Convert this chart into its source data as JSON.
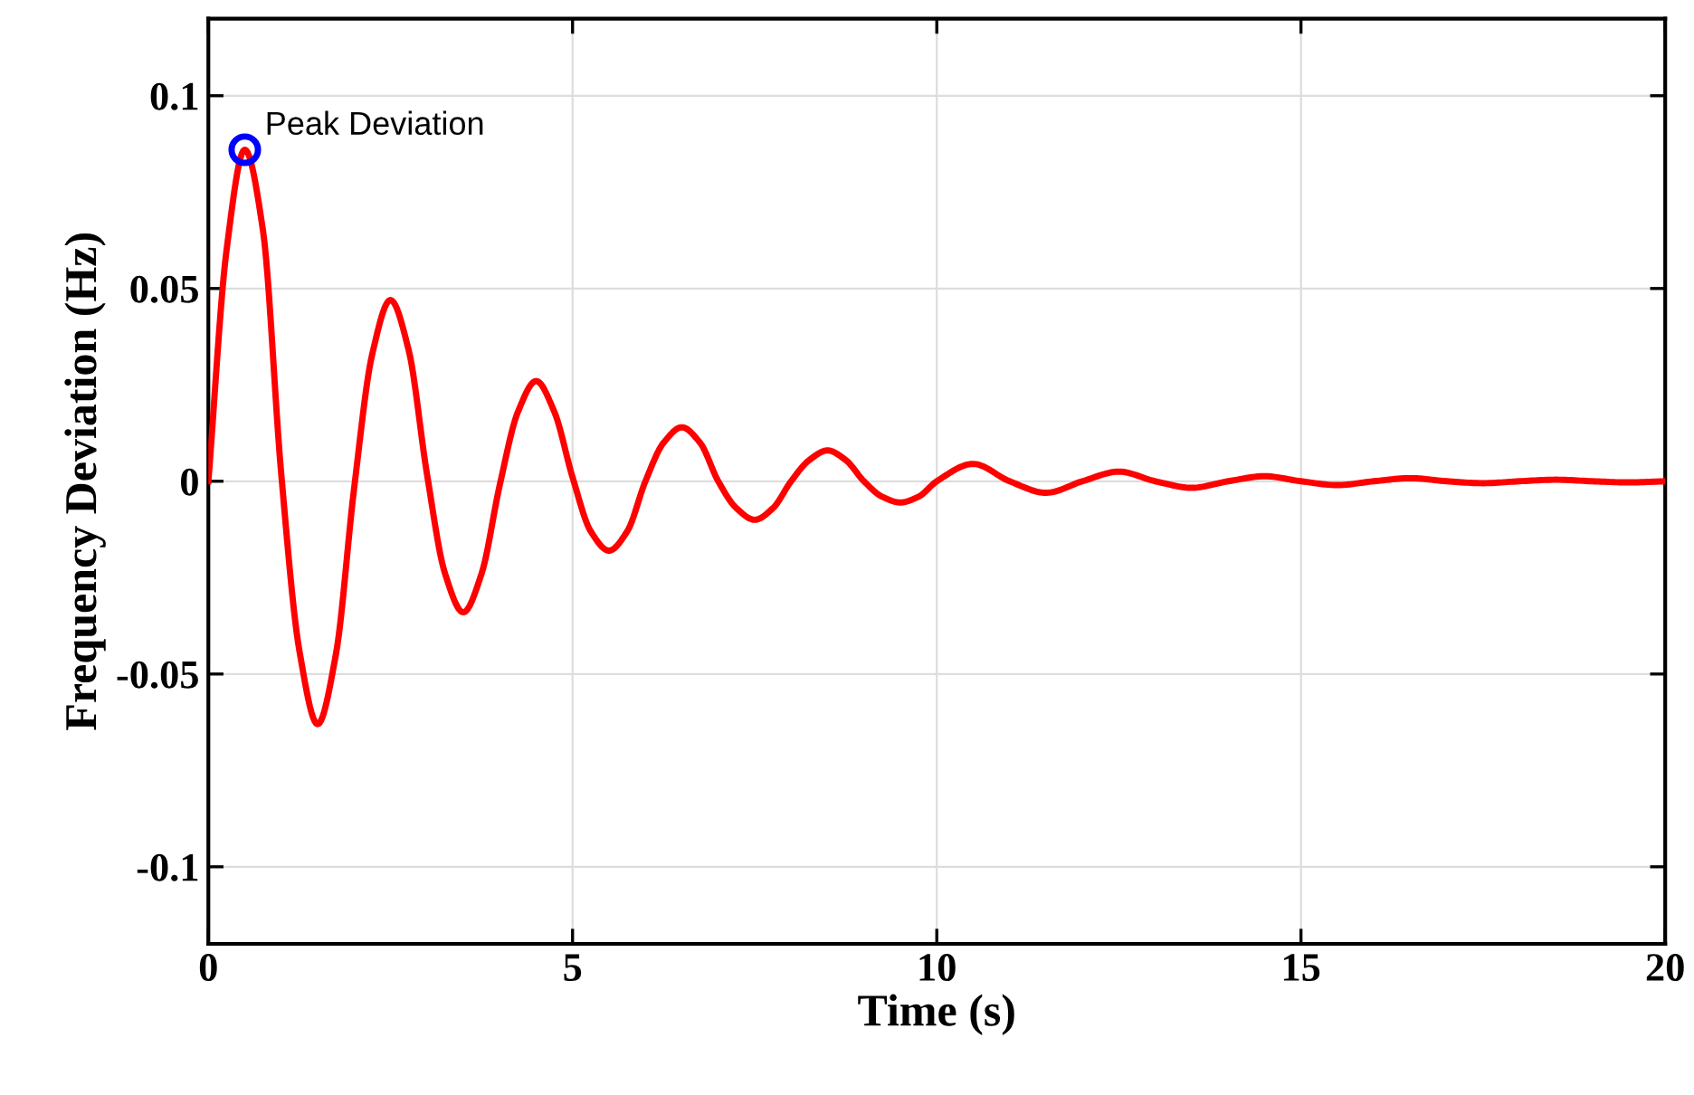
{
  "chart_data": {
    "type": "line",
    "xlabel": "Time (s)",
    "ylabel": "Frequency Deviation (Hz)",
    "xlim": [
      0,
      20
    ],
    "xticks": [
      0,
      5,
      10,
      15,
      20
    ],
    "ylim": [
      -0.12,
      0.12
    ],
    "yticks": [
      {
        "value": -0.1,
        "label": "-0.1"
      },
      {
        "value": -0.05,
        "label": "-0.05"
      },
      0,
      0.05,
      0.1
    ],
    "grid": true,
    "marker": "none",
    "line_style": "solid",
    "series": [
      {
        "color": "#ff0000",
        "x": [
          0,
          0.25,
          0.5,
          0.75,
          1,
          1.25,
          1.5,
          1.75,
          2,
          2.25,
          2.5,
          2.75,
          3,
          3.25,
          3.5,
          3.75,
          4,
          4.25,
          4.5,
          4.75,
          5,
          5.25,
          5.5,
          5.75,
          6,
          6.25,
          6.5,
          6.75,
          7,
          7.25,
          7.5,
          7.75,
          8,
          8.25,
          8.5,
          8.75,
          9,
          9.25,
          9.5,
          9.75,
          10,
          10.5,
          11,
          11.5,
          12,
          12.5,
          13,
          13.5,
          14,
          14.5,
          15,
          15.5,
          16,
          16.5,
          17,
          17.5,
          18,
          18.5,
          19,
          19.5,
          20
        ],
        "values": [
          0,
          0.06,
          0.086,
          0.065,
          0.002,
          -0.044,
          -0.063,
          -0.045,
          -0.002,
          0.033,
          0.047,
          0.034,
          0.002,
          -0.024,
          -0.034,
          -0.024,
          -0.001,
          0.018,
          0.026,
          0.018,
          0.001,
          -0.013,
          -0.018,
          -0.013,
          0,
          0.01,
          0.014,
          0.01,
          0,
          -0.007,
          -0.01,
          -0.007,
          0,
          0.0055,
          0.008,
          0.0055,
          0,
          -0.004,
          -0.0055,
          -0.004,
          0,
          0.0045,
          0,
          -0.003,
          0,
          0.0025,
          0,
          -0.0017,
          0,
          0.0013,
          0,
          -0.001,
          0,
          0.0008,
          0,
          -0.0005,
          0,
          0.0004,
          0,
          -0.0003,
          0
        ]
      },
      {
        "type": "scatter",
        "color": "#0000ff",
        "marker": "circle",
        "x": [
          0.5
        ],
        "values": [
          0.086
        ]
      }
    ],
    "annotations": [
      {
        "text": "Peak Deviation",
        "x": 0.5,
        "y": 0.086
      }
    ]
  }
}
